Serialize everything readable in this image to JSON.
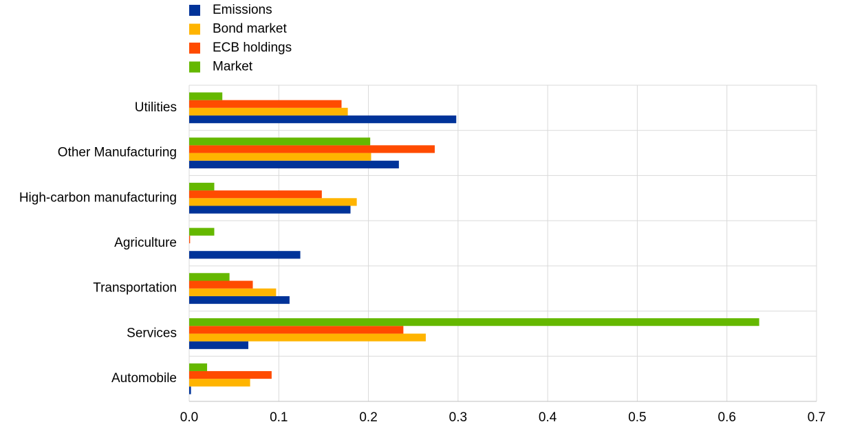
{
  "chart_data": {
    "type": "bar",
    "orientation": "horizontal",
    "categories": [
      "Utilities",
      "Other Manufacturing",
      "High-carbon manufacturing",
      "Agriculture",
      "Transportation",
      "Services",
      "Automobile"
    ],
    "series": [
      {
        "name": "Emissions",
        "color": "#003399",
        "values": [
          0.298,
          0.234,
          0.18,
          0.124,
          0.112,
          0.066,
          0.002
        ]
      },
      {
        "name": "Bond market",
        "color": "#ffb400",
        "values": [
          0.177,
          0.203,
          0.187,
          0,
          0.097,
          0.264,
          0.068
        ]
      },
      {
        "name": "ECB holdings",
        "color": "#ff4b00",
        "values": [
          0.17,
          0.274,
          0.148,
          0.001,
          0.071,
          0.239,
          0.092
        ]
      },
      {
        "name": "Market",
        "color": "#65b800",
        "values": [
          0.037,
          0.202,
          0.028,
          0.028,
          0.045,
          0.636,
          0.02
        ]
      }
    ],
    "xlim": [
      0,
      0.7
    ],
    "xticks": [
      {
        "value": 0,
        "label": "0.0"
      },
      0.1,
      0.2,
      0.3,
      0.4,
      0.5,
      0.6,
      0.7
    ],
    "grid": true
  }
}
